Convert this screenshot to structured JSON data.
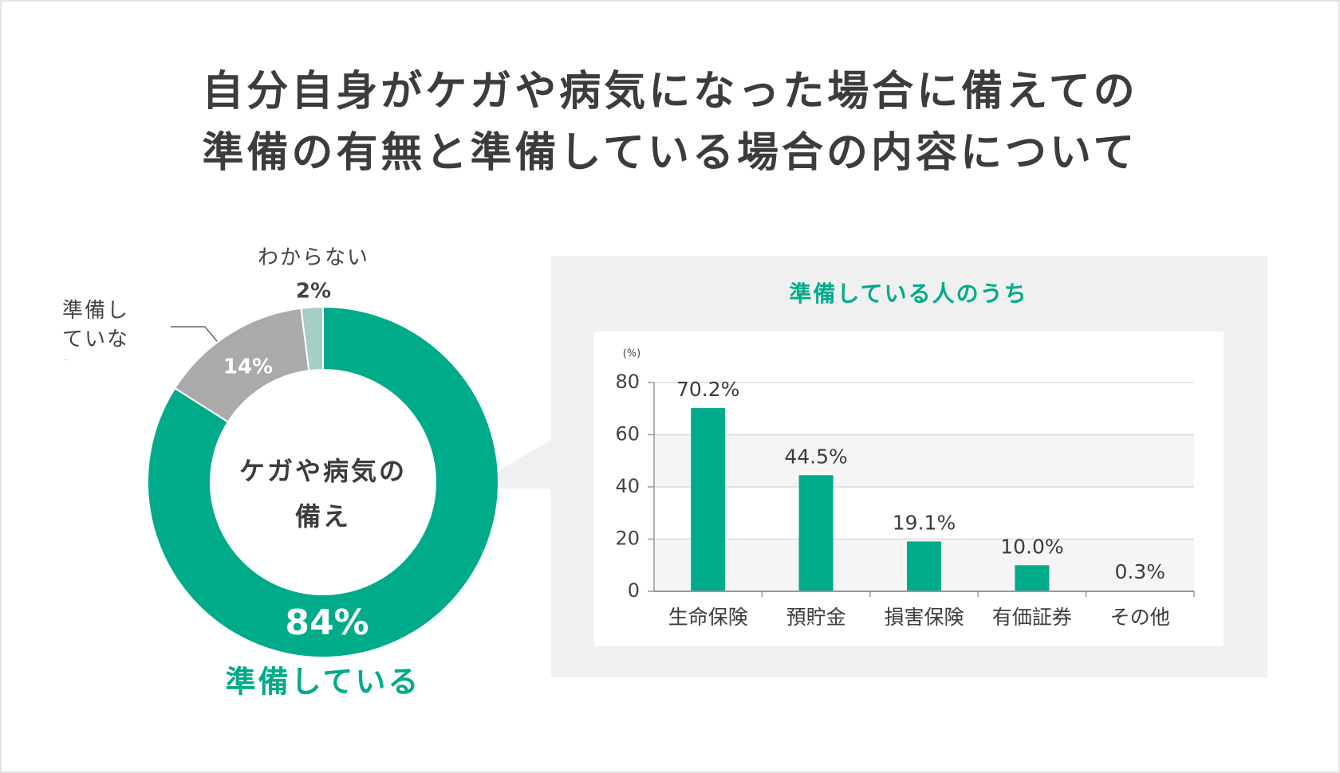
{
  "header": {
    "title_lines": [
      "自分自身がケガや病気になった場合に備えての",
      "準備の有無と準備している場合の内容について"
    ]
  },
  "chart_data": [
    {
      "type": "pie",
      "center_label": [
        "ケガや病気の",
        "備え"
      ],
      "categories": [
        "準備している",
        "準備していない",
        "わからない"
      ],
      "values": [
        84,
        14,
        2
      ],
      "value_labels": [
        "84%",
        "14%",
        "2%"
      ],
      "colors": [
        "#00ab8a",
        "#aaaaaa",
        "#a3cfc4"
      ]
    },
    {
      "type": "bar",
      "title": "準備している人のうち",
      "y_unit": "(%)",
      "categories": [
        "生命保険",
        "預貯金",
        "損害保険",
        "有価証券",
        "その他"
      ],
      "values": [
        70.2,
        44.5,
        19.1,
        10.0,
        0.3
      ],
      "value_labels": [
        "70.2%",
        "44.5%",
        "19.1%",
        "10.0%",
        "0.3%"
      ],
      "color": "#00ab8a",
      "ylim": [
        0,
        80
      ],
      "yticks": [
        0,
        20,
        40,
        60,
        80
      ],
      "grid": true
    }
  ]
}
